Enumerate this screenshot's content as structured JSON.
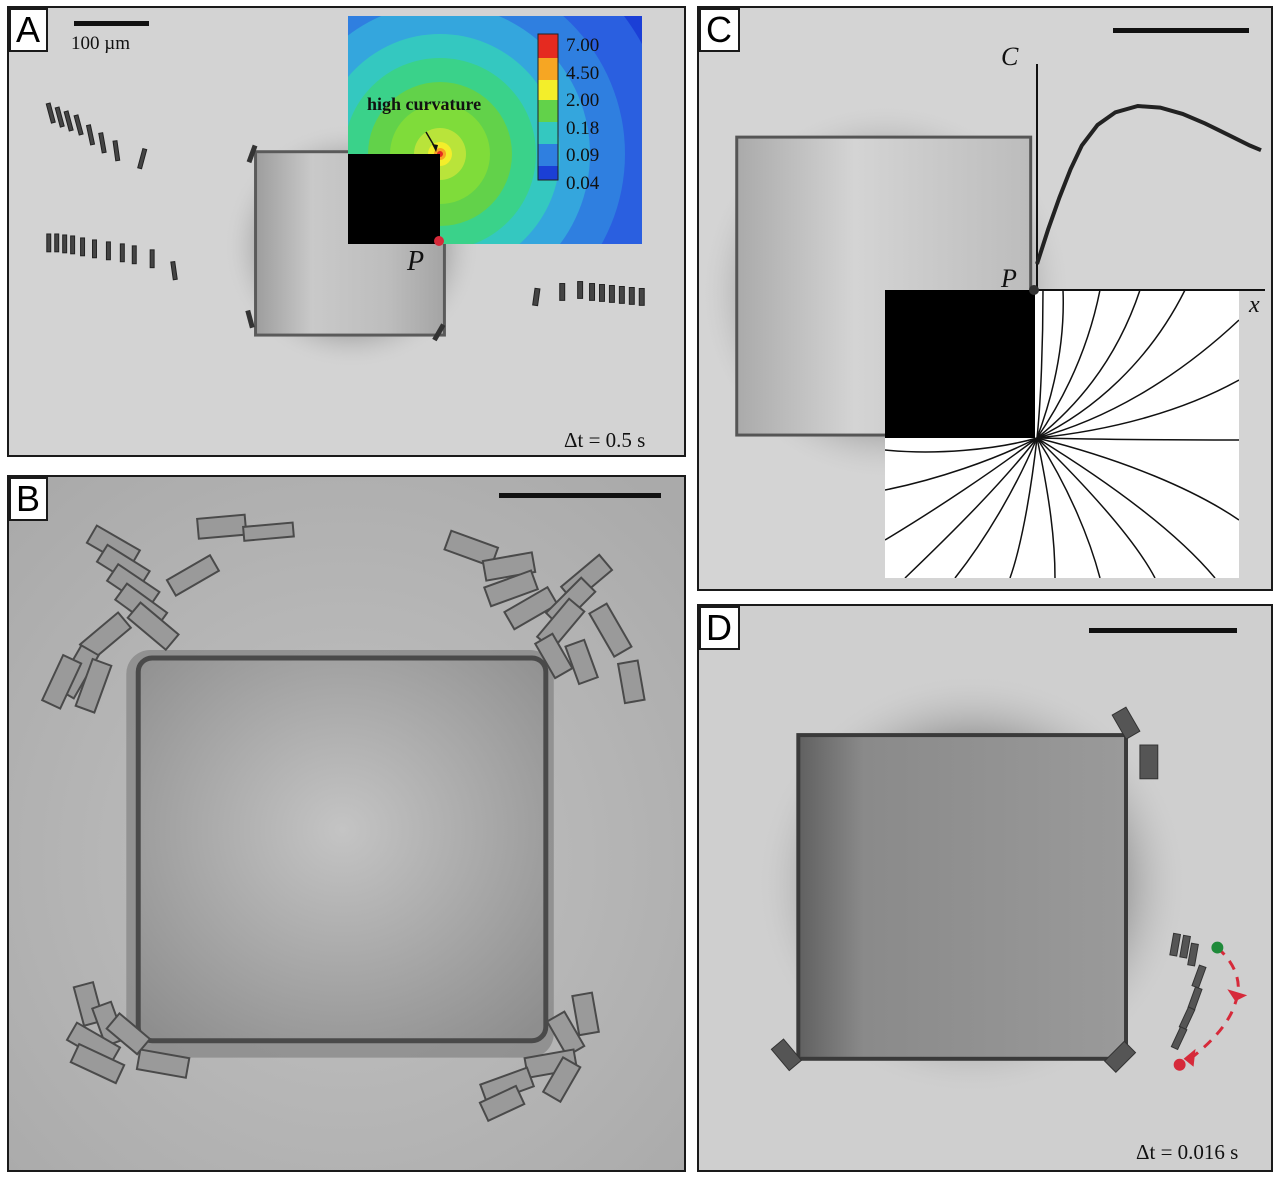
{
  "panels": {
    "A": {
      "label": "A",
      "scale_text": "100 µm",
      "inset": {
        "annotation": "high curvature",
        "point_label": "P",
        "colorbar_ticks": [
          "7.00",
          "4.50",
          "2.00",
          "0.18",
          "0.09",
          "0.04"
        ],
        "colors": [
          "#e52a20",
          "#f6a623",
          "#f3ee2a",
          "#62d24a",
          "#34c8c0",
          "#2f7fe0",
          "#1b3fd6"
        ]
      },
      "time": "Δt = 0.5 s"
    },
    "B": {
      "label": "B"
    },
    "C": {
      "label": "C",
      "y_axis_label": "C",
      "x_axis_label": "x",
      "point_label": "P",
      "curve": {
        "x": [
          0,
          0.05,
          0.1,
          0.15,
          0.2,
          0.27,
          0.35,
          0.45,
          0.55,
          0.65,
          0.75,
          0.85,
          0.95,
          1.0
        ],
        "y": [
          0.0,
          0.22,
          0.42,
          0.6,
          0.75,
          0.88,
          0.96,
          1.0,
          0.99,
          0.95,
          0.89,
          0.82,
          0.75,
          0.72
        ]
      }
    },
    "D": {
      "label": "D",
      "time": "Δt = 0.016 s",
      "marker_colors": {
        "start": "#1f8a3a",
        "end": "#d62a3a"
      }
    }
  }
}
